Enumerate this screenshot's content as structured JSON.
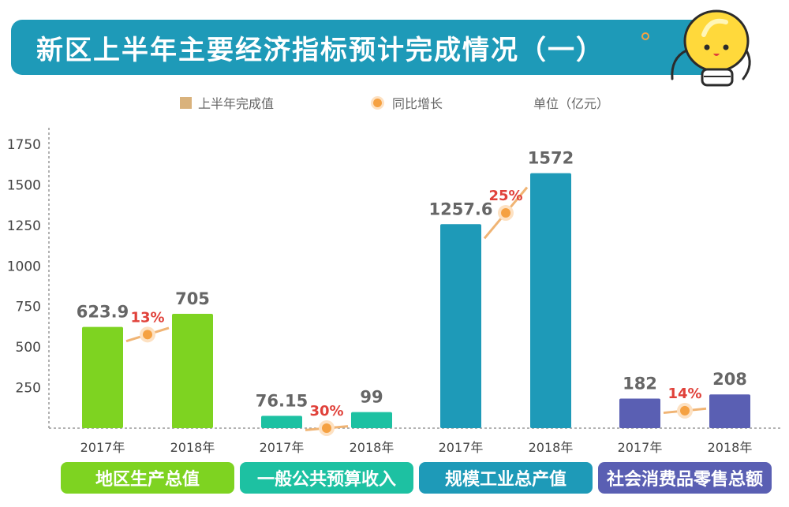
{
  "title": "新区上半年主要经济指标预计完成情况（一）",
  "legend": {
    "value_label": "上半年完成值",
    "growth_label": "同比增长",
    "unit_label": "单位（亿元）"
  },
  "colors": {
    "banner": "#1e9ab8",
    "legend_swatch": "#d9b27c",
    "growth_dot": "#f5a142",
    "growth_line": "#f0b474",
    "value_text": "#666666",
    "growth_text": "#e0413a"
  },
  "chart_data": {
    "type": "bar",
    "ylim": [
      0,
      1750
    ],
    "yticks": [
      250,
      500,
      750,
      1000,
      1250,
      1500,
      1750
    ],
    "grid": false,
    "groups": [
      {
        "category": "地区生产总值",
        "color": "#7ed321",
        "bars": [
          {
            "year": "2017年",
            "value": 623.9,
            "label": "623.9"
          },
          {
            "year": "2018年",
            "value": 705,
            "label": "705"
          }
        ],
        "growth": "13%"
      },
      {
        "category": "一般公共预算收入",
        "color": "#1dc1a2",
        "bars": [
          {
            "year": "2017年",
            "value": 76.15,
            "label": "76.15"
          },
          {
            "year": "2018年",
            "value": 99,
            "label": "99"
          }
        ],
        "growth": "30%"
      },
      {
        "category": "规模工业总产值",
        "color": "#1e9ab8",
        "bars": [
          {
            "year": "2017年",
            "value": 1257.6,
            "label": "1257.6"
          },
          {
            "year": "2018年",
            "value": 1572,
            "label": "1572"
          }
        ],
        "growth": "25%"
      },
      {
        "category": "社会消费品零售总额",
        "color": "#5a5fb3",
        "bars": [
          {
            "year": "2017年",
            "value": 182,
            "label": "182"
          },
          {
            "year": "2018年",
            "value": 208,
            "label": "208"
          }
        ],
        "growth": "14%"
      }
    ]
  }
}
